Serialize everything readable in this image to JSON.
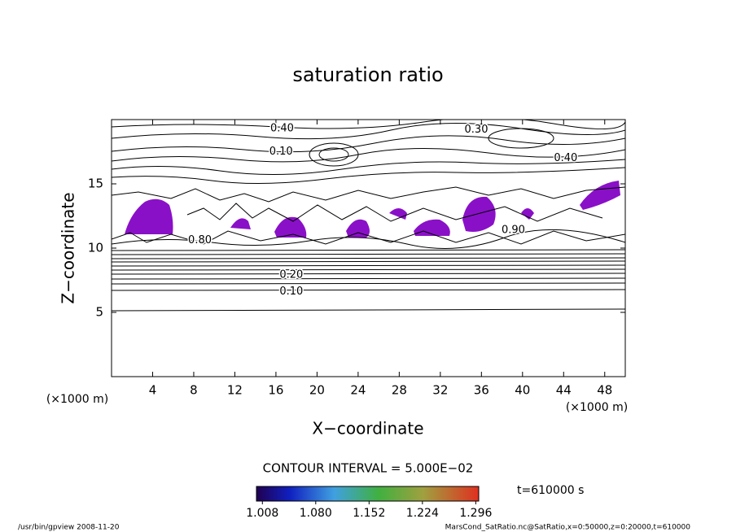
{
  "chart_data": {
    "type": "contour",
    "title": "saturation ratio",
    "x_label": "X−coordinate",
    "y_label": "Z−coordinate",
    "x_unit": "(×1000 m)",
    "y_unit": "(×1000 m)",
    "xlim": [
      0,
      50
    ],
    "xticks": [
      4,
      8,
      12,
      16,
      20,
      24,
      28,
      32,
      36,
      40,
      44,
      48
    ],
    "ylim": [
      0,
      20
    ],
    "yticks": [
      5,
      10,
      15
    ],
    "contour_labels": [
      {
        "text": "0.40",
        "x": 16.6,
        "y": 19.3
      },
      {
        "text": "0.30",
        "x": 35.5,
        "y": 19.2
      },
      {
        "text": "0.10",
        "x": 16.5,
        "y": 17.5
      },
      {
        "text": "0.40",
        "x": 44.2,
        "y": 17.0
      },
      {
        "text": "0.80",
        "x": 8.6,
        "y": 10.6
      },
      {
        "text": "0.90",
        "x": 39.1,
        "y": 11.4
      },
      {
        "text": "0.20",
        "x": 17.5,
        "y": 7.9
      },
      {
        "text": "0.10",
        "x": 17.5,
        "y": 6.6
      }
    ],
    "contour_interval": "CONTOUR INTERVAL = 5.000E−02",
    "time_label": "t=610000 s",
    "colorbar_lim": [
      1.0,
      1.3
    ],
    "colorbar_ticks": [
      1.008,
      {
        "value": 1.08,
        "label": "1.080"
      },
      1.152,
      1.224,
      1.296
    ],
    "fill_color": "#8a10c8",
    "footer_left": "/usr/bin/gpview   2008-11-20",
    "footer_right": "MarsCond_SatRatio.nc@SatRatio,x=0:50000,z=0:20000,t=610000"
  }
}
